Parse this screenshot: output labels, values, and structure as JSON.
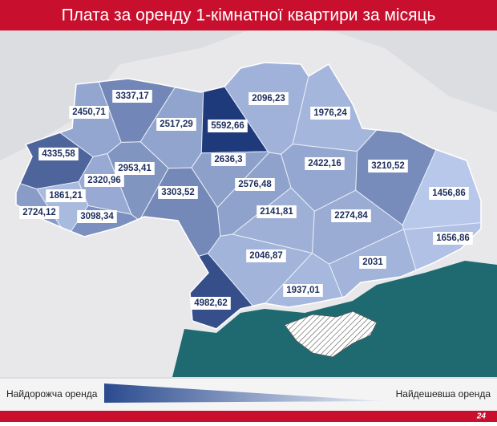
{
  "header": {
    "title": "Плата за оренду 1-кімнатної квартири за місяць"
  },
  "regions": [
    {
      "value": 3337.17,
      "label": "3337,17"
    },
    {
      "value": 2450.71,
      "label": "2450,71"
    },
    {
      "value": 2517.29,
      "label": "2517,29"
    },
    {
      "value": 5592.66,
      "label": "5592,66"
    },
    {
      "value": 2096.23,
      "label": "2096,23"
    },
    {
      "value": 1976.24,
      "label": "1976,24"
    },
    {
      "value": 4335.58,
      "label": "4335,58"
    },
    {
      "value": 2953.41,
      "label": "2953,41"
    },
    {
      "value": 2636.3,
      "label": "2636,3"
    },
    {
      "value": 2422.16,
      "label": "2422,16"
    },
    {
      "value": 3210.52,
      "label": "3210,52"
    },
    {
      "value": 2320.96,
      "label": "2320,96"
    },
    {
      "value": 3303.52,
      "label": "3303,52"
    },
    {
      "value": 2576.48,
      "label": "2576,48"
    },
    {
      "value": 1456.86,
      "label": "1456,86"
    },
    {
      "value": 1861.21,
      "label": "1861,21"
    },
    {
      "value": 2724.12,
      "label": "2724,12"
    },
    {
      "value": 3098.34,
      "label": "3098,34"
    },
    {
      "value": 2141.81,
      "label": "2141,81"
    },
    {
      "value": 2274.84,
      "label": "2274,84"
    },
    {
      "value": 1656.86,
      "label": "1656,86"
    },
    {
      "value": 2046.87,
      "label": "2046,87"
    },
    {
      "value": 2031,
      "label": "2031"
    },
    {
      "value": 1937.01,
      "label": "1937,01"
    },
    {
      "value": 4982.62,
      "label": "4982,62"
    }
  ],
  "legend": {
    "high": "Найдорожча оренда",
    "low": "Найдешевша оренда"
  },
  "footer": {
    "logo": "24"
  }
}
